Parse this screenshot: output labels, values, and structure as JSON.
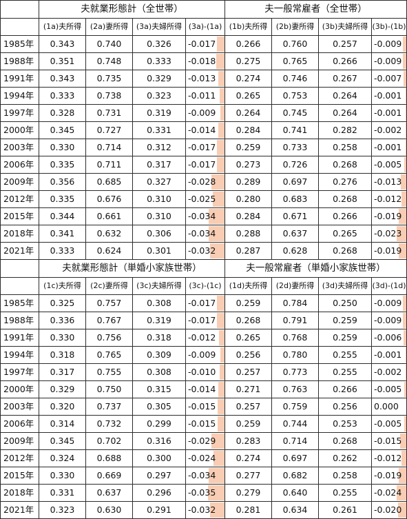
{
  "accent_color": "#f8cdb3",
  "panels": [
    {
      "left_title": "夫就業形態計（全世帯）",
      "right_title": "夫一般常雇者（全世帯）",
      "cols": [
        "(1a)夫所得",
        "(2a)妻所得",
        "(3a)夫婦所得",
        "(3a)-(1a)",
        "(1b)夫所得",
        "(2b)妻所得",
        "(3b)夫婦所得",
        "(3b)-(1b)"
      ],
      "rows": [
        {
          "year": "1985年",
          "v": [
            "0.343",
            "0.740",
            "0.326",
            "-0.017",
            "0.266",
            "0.760",
            "0.257",
            "-0.009"
          ]
        },
        {
          "year": "1988年",
          "v": [
            "0.351",
            "0.748",
            "0.333",
            "-0.018",
            "0.275",
            "0.765",
            "0.266",
            "-0.009"
          ]
        },
        {
          "year": "1991年",
          "v": [
            "0.343",
            "0.735",
            "0.329",
            "-0.013",
            "0.274",
            "0.746",
            "0.267",
            "-0.007"
          ]
        },
        {
          "year": "1994年",
          "v": [
            "0.333",
            "0.738",
            "0.323",
            "-0.011",
            "0.265",
            "0.753",
            "0.264",
            "-0.001"
          ]
        },
        {
          "year": "1997年",
          "v": [
            "0.328",
            "0.731",
            "0.319",
            "-0.009",
            "0.264",
            "0.745",
            "0.264",
            "-0.001"
          ]
        },
        {
          "year": "2000年",
          "v": [
            "0.345",
            "0.727",
            "0.331",
            "-0.014",
            "0.284",
            "0.741",
            "0.282",
            "-0.002"
          ]
        },
        {
          "year": "2003年",
          "v": [
            "0.330",
            "0.714",
            "0.312",
            "-0.017",
            "0.259",
            "0.733",
            "0.258",
            "-0.001"
          ]
        },
        {
          "year": "2006年",
          "v": [
            "0.335",
            "0.711",
            "0.317",
            "-0.017",
            "0.273",
            "0.726",
            "0.268",
            "-0.005"
          ]
        },
        {
          "year": "2009年",
          "v": [
            "0.356",
            "0.685",
            "0.327",
            "-0.028",
            "0.289",
            "0.697",
            "0.276",
            "-0.013"
          ]
        },
        {
          "year": "2012年",
          "v": [
            "0.335",
            "0.676",
            "0.310",
            "-0.025",
            "0.280",
            "0.683",
            "0.268",
            "-0.012"
          ]
        },
        {
          "year": "2015年",
          "v": [
            "0.344",
            "0.661",
            "0.310",
            "-0.034",
            "0.284",
            "0.671",
            "0.266",
            "-0.019"
          ]
        },
        {
          "year": "2018年",
          "v": [
            "0.341",
            "0.632",
            "0.306",
            "-0.034",
            "0.288",
            "0.637",
            "0.265",
            "-0.023"
          ]
        },
        {
          "year": "2021年",
          "v": [
            "0.333",
            "0.624",
            "0.301",
            "-0.032",
            "0.287",
            "0.628",
            "0.268",
            "-0.019"
          ]
        }
      ]
    },
    {
      "left_title": "夫就業形態計（単婚小家族世帯）",
      "right_title": "夫一般常雇者（単婚小家族世帯）",
      "cols": [
        "(1c)夫所得",
        "(2c)妻所得",
        "(3c)夫婦所得",
        "(3c)-(1c)",
        "(1d)夫所得",
        "(2d)妻所得",
        "(3d)夫婦所得",
        "(3d)-(1d)"
      ],
      "rows": [
        {
          "year": "1985年",
          "v": [
            "0.325",
            "0.757",
            "0.308",
            "-0.017",
            "0.259",
            "0.784",
            "0.250",
            "-0.009"
          ]
        },
        {
          "year": "1988年",
          "v": [
            "0.336",
            "0.767",
            "0.319",
            "-0.017",
            "0.268",
            "0.791",
            "0.259",
            "-0.009"
          ]
        },
        {
          "year": "1991年",
          "v": [
            "0.330",
            "0.756",
            "0.318",
            "-0.012",
            "0.265",
            "0.768",
            "0.259",
            "-0.006"
          ]
        },
        {
          "year": "1994年",
          "v": [
            "0.318",
            "0.765",
            "0.309",
            "-0.009",
            "0.256",
            "0.780",
            "0.255",
            "-0.001"
          ]
        },
        {
          "year": "1997年",
          "v": [
            "0.317",
            "0.755",
            "0.308",
            "-0.010",
            "0.257",
            "0.773",
            "0.255",
            "-0.002"
          ]
        },
        {
          "year": "2000年",
          "v": [
            "0.329",
            "0.750",
            "0.315",
            "-0.014",
            "0.271",
            "0.763",
            "0.266",
            "-0.005"
          ]
        },
        {
          "year": "2003年",
          "v": [
            "0.320",
            "0.737",
            "0.305",
            "-0.015",
            "0.257",
            "0.759",
            "0.256",
            "0.000"
          ]
        },
        {
          "year": "2006年",
          "v": [
            "0.314",
            "0.732",
            "0.299",
            "-0.015",
            "0.259",
            "0.744",
            "0.253",
            "-0.005"
          ]
        },
        {
          "year": "2009年",
          "v": [
            "0.345",
            "0.702",
            "0.316",
            "-0.029",
            "0.283",
            "0.714",
            "0.268",
            "-0.015"
          ]
        },
        {
          "year": "2012年",
          "v": [
            "0.324",
            "0.688",
            "0.300",
            "-0.024",
            "0.274",
            "0.697",
            "0.262",
            "-0.012"
          ]
        },
        {
          "year": "2015年",
          "v": [
            "0.330",
            "0.669",
            "0.297",
            "-0.034",
            "0.277",
            "0.682",
            "0.258",
            "-0.019"
          ]
        },
        {
          "year": "2018年",
          "v": [
            "0.331",
            "0.637",
            "0.296",
            "-0.035",
            "0.279",
            "0.640",
            "0.255",
            "-0.024"
          ]
        },
        {
          "year": "2021年",
          "v": [
            "0.323",
            "0.630",
            "0.291",
            "-0.032",
            "0.281",
            "0.634",
            "0.261",
            "-0.020"
          ]
        }
      ]
    }
  ]
}
